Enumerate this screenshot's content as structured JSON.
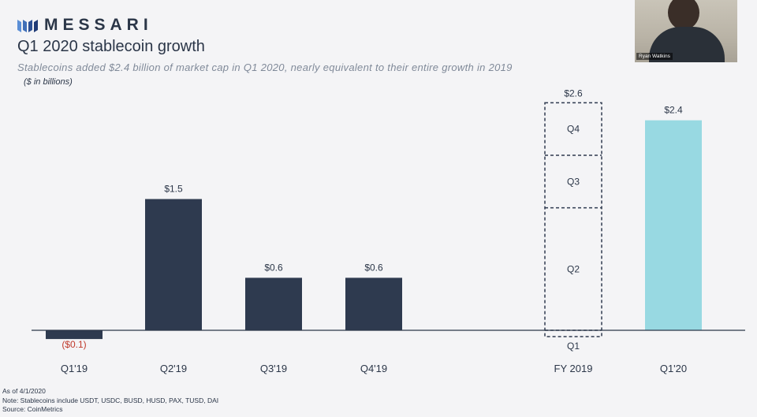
{
  "header": {
    "brand": "MESSARI",
    "title": "Q1 2020 stablecoin growth",
    "subtitle": "Stablecoins added $2.4 billion of market cap in Q1 2020, nearly equivalent to their entire growth in 2019",
    "unit_note": "($ in billions)"
  },
  "footnotes": {
    "as_of": "As of 4/1/2020",
    "note": "Note: Stablecoins include USDT, USDC, BUSD, HUSD, PAX, TUSD, DAI",
    "source": "Source: CoinMetrics"
  },
  "webcam": {
    "name": "Ryan Watkins"
  },
  "colors": {
    "bar": "#2e3a4f",
    "highlight": "#98d9e2",
    "negative_label": "#c0392b",
    "text": "#2b3648"
  },
  "chart_data": {
    "type": "bar",
    "title": "Q1 2020 stablecoin growth",
    "ylabel": "$ in billions",
    "ylim": [
      -0.1,
      2.6
    ],
    "grid": false,
    "categories": [
      "Q1'19",
      "Q2'19",
      "Q3'19",
      "Q4'19",
      "FY 2019",
      "Q1'20"
    ],
    "bars": [
      {
        "category": "Q1'19",
        "value": -0.1,
        "label": "($0.1)",
        "style": "solid"
      },
      {
        "category": "Q2'19",
        "value": 1.5,
        "label": "$1.5",
        "style": "solid"
      },
      {
        "category": "Q3'19",
        "value": 0.6,
        "label": "$0.6",
        "style": "solid"
      },
      {
        "category": "Q4'19",
        "value": 0.6,
        "label": "$0.6",
        "style": "solid"
      },
      {
        "category": "FY 2019",
        "value": 2.6,
        "label": "$2.6",
        "style": "stacked-outline",
        "segments": [
          {
            "name": "Q1",
            "value": -0.1
          },
          {
            "name": "Q2",
            "value": 1.5
          },
          {
            "name": "Q3",
            "value": 0.6
          },
          {
            "name": "Q4",
            "value": 0.6
          }
        ]
      },
      {
        "category": "Q1'20",
        "value": 2.4,
        "label": "$2.4",
        "style": "highlight"
      }
    ]
  }
}
